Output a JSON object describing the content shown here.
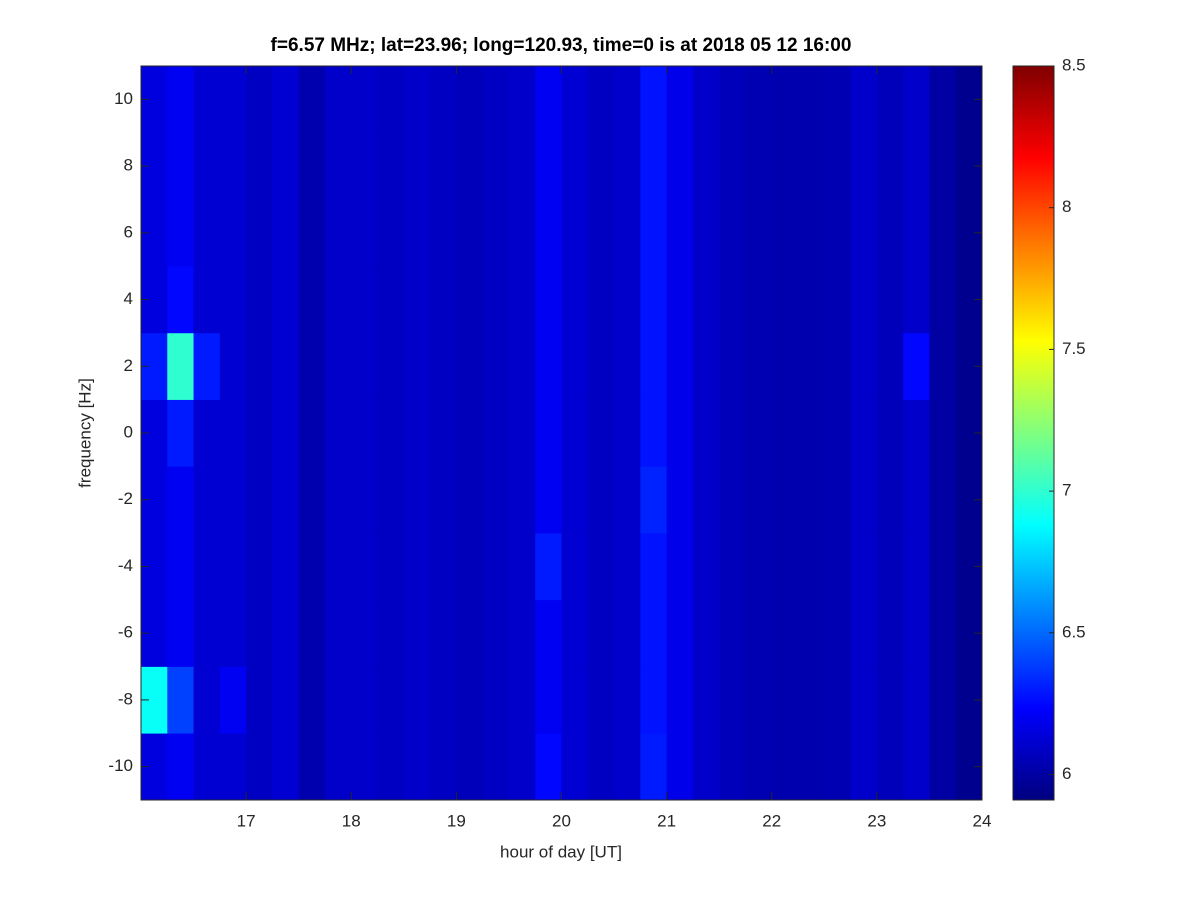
{
  "chart_data": {
    "type": "heatmap",
    "title": "f=6.57 MHz;  lat=23.96; long=120.93, time=0 is at 2018 05 12 16:00",
    "xlabel": "hour of day [UT]",
    "ylabel": "frequency [Hz]",
    "colormap": "jet",
    "xlim": [
      16,
      24
    ],
    "xticks": [
      17,
      18,
      19,
      20,
      21,
      22,
      23,
      24
    ],
    "ylim": [
      -11,
      11
    ],
    "yticks": [
      -10,
      -8,
      -6,
      -4,
      -2,
      0,
      2,
      4,
      6,
      8,
      10
    ],
    "clim": [
      5.91,
      8.5
    ],
    "cticks": [
      6,
      6.5,
      7,
      7.5,
      8,
      8.5
    ],
    "xbins": [
      16,
      16.25,
      16.5,
      16.75,
      17,
      17.25,
      17.5,
      17.75,
      18,
      18.25,
      18.5,
      18.75,
      19,
      19.25,
      19.5,
      19.75,
      20,
      20.25,
      20.5,
      20.75,
      21,
      21.25,
      21.5,
      21.75,
      22,
      22.25,
      22.5,
      22.75,
      23,
      23.25,
      23.5,
      23.75,
      24
    ],
    "ybins": [
      -11,
      -9,
      -7,
      -5,
      -3,
      -1,
      1,
      3,
      5,
      7,
      9,
      11
    ],
    "z": [
      [
        6.15,
        6.2,
        6.12,
        6.12,
        6.08,
        6.12,
        6.03,
        6.1,
        6.1,
        6.08,
        6.1,
        6.08,
        6.06,
        6.08,
        6.1,
        6.25,
        6.12,
        6.08,
        6.1,
        6.3,
        6.18,
        6.1,
        6.06,
        6.04,
        6.03,
        6.03,
        6.04,
        6.1,
        6.06,
        6.1,
        6.0,
        5.95
      ],
      [
        6.9,
        6.4,
        6.12,
        6.2,
        6.08,
        6.12,
        6.03,
        6.1,
        6.1,
        6.08,
        6.1,
        6.08,
        6.06,
        6.08,
        6.1,
        6.2,
        6.12,
        6.08,
        6.1,
        6.28,
        6.18,
        6.1,
        6.06,
        6.04,
        6.03,
        6.03,
        6.04,
        6.1,
        6.06,
        6.1,
        6.0,
        5.95
      ],
      [
        6.15,
        6.2,
        6.12,
        6.12,
        6.08,
        6.12,
        6.03,
        6.1,
        6.1,
        6.08,
        6.1,
        6.08,
        6.06,
        6.08,
        6.1,
        6.2,
        6.12,
        6.08,
        6.1,
        6.28,
        6.18,
        6.1,
        6.06,
        6.04,
        6.03,
        6.03,
        6.04,
        6.1,
        6.06,
        6.1,
        6.0,
        5.95
      ],
      [
        6.15,
        6.2,
        6.12,
        6.12,
        6.08,
        6.12,
        6.03,
        6.1,
        6.1,
        6.08,
        6.1,
        6.08,
        6.06,
        6.08,
        6.1,
        6.3,
        6.12,
        6.08,
        6.1,
        6.28,
        6.18,
        6.1,
        6.06,
        6.04,
        6.03,
        6.03,
        6.04,
        6.1,
        6.06,
        6.1,
        6.0,
        5.95
      ],
      [
        6.15,
        6.2,
        6.12,
        6.12,
        6.08,
        6.12,
        6.03,
        6.1,
        6.1,
        6.08,
        6.1,
        6.08,
        6.06,
        6.08,
        6.1,
        6.2,
        6.12,
        6.08,
        6.1,
        6.32,
        6.18,
        6.1,
        6.06,
        6.04,
        6.03,
        6.03,
        6.04,
        6.1,
        6.06,
        6.1,
        6.0,
        5.95
      ],
      [
        6.15,
        6.3,
        6.12,
        6.12,
        6.08,
        6.12,
        6.03,
        6.1,
        6.1,
        6.08,
        6.1,
        6.08,
        6.06,
        6.08,
        6.1,
        6.2,
        6.12,
        6.08,
        6.1,
        6.28,
        6.18,
        6.1,
        6.06,
        6.04,
        6.03,
        6.03,
        6.04,
        6.1,
        6.06,
        6.1,
        6.0,
        5.95
      ],
      [
        6.3,
        7.0,
        6.3,
        6.12,
        6.08,
        6.12,
        6.03,
        6.1,
        6.1,
        6.08,
        6.1,
        6.08,
        6.06,
        6.08,
        6.1,
        6.2,
        6.12,
        6.08,
        6.1,
        6.28,
        6.18,
        6.1,
        6.06,
        6.04,
        6.03,
        6.03,
        6.04,
        6.1,
        6.06,
        6.25,
        6.0,
        5.95
      ],
      [
        6.15,
        6.25,
        6.12,
        6.12,
        6.08,
        6.12,
        6.03,
        6.1,
        6.1,
        6.08,
        6.1,
        6.08,
        6.06,
        6.08,
        6.1,
        6.2,
        6.12,
        6.08,
        6.1,
        6.28,
        6.18,
        6.1,
        6.06,
        6.04,
        6.03,
        6.03,
        6.04,
        6.1,
        6.06,
        6.1,
        6.0,
        5.95
      ],
      [
        6.15,
        6.2,
        6.12,
        6.12,
        6.08,
        6.12,
        6.03,
        6.1,
        6.1,
        6.08,
        6.1,
        6.08,
        6.06,
        6.08,
        6.1,
        6.2,
        6.12,
        6.08,
        6.1,
        6.28,
        6.18,
        6.1,
        6.06,
        6.04,
        6.03,
        6.03,
        6.04,
        6.1,
        6.06,
        6.1,
        6.0,
        5.95
      ],
      [
        6.15,
        6.2,
        6.12,
        6.12,
        6.08,
        6.12,
        6.03,
        6.1,
        6.1,
        6.08,
        6.1,
        6.08,
        6.06,
        6.08,
        6.1,
        6.2,
        6.12,
        6.08,
        6.1,
        6.28,
        6.18,
        6.1,
        6.06,
        6.04,
        6.03,
        6.03,
        6.04,
        6.1,
        6.06,
        6.1,
        6.0,
        5.95
      ],
      [
        6.15,
        6.2,
        6.12,
        6.12,
        6.08,
        6.12,
        6.03,
        6.1,
        6.1,
        6.08,
        6.1,
        6.08,
        6.06,
        6.08,
        6.1,
        6.2,
        6.12,
        6.08,
        6.1,
        6.28,
        6.18,
        6.1,
        6.06,
        6.04,
        6.03,
        6.03,
        6.04,
        6.1,
        6.06,
        6.1,
        6.0,
        5.95
      ]
    ]
  }
}
